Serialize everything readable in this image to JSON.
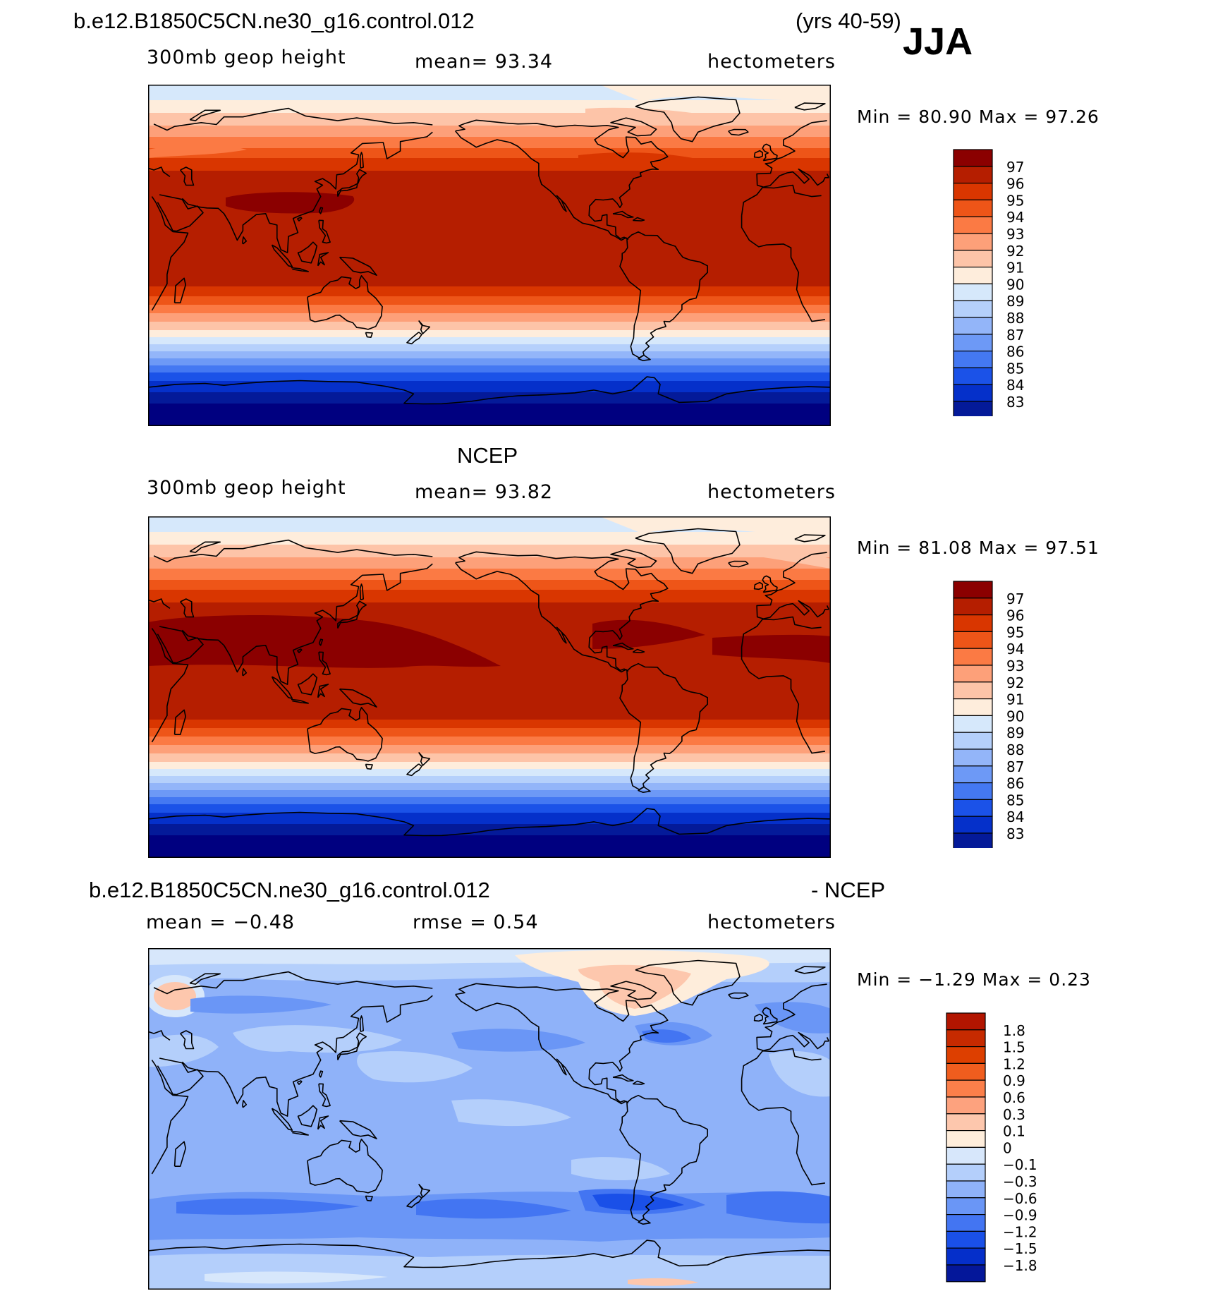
{
  "header": {
    "case_name": "b.e12.B1850C5CN.ne30_g16.control.012",
    "years": "(yrs 40-59)",
    "season": "JJA"
  },
  "panels": [
    {
      "id": "model",
      "title": "",
      "variable": "300mb geop height",
      "stat": "mean=   93.34",
      "units": "hectometers",
      "minmax": "Min =   80.90 Max =   97.26",
      "colorbar": {
        "labels": [
          "97",
          "96",
          "95",
          "94",
          "93",
          "92",
          "91",
          "90",
          "89",
          "88",
          "87",
          "86",
          "85",
          "84",
          "83"
        ],
        "colors": [
          "#8b0000",
          "#b51e00",
          "#d93600",
          "#ee5518",
          "#fb7a44",
          "#fda079",
          "#fdc4a8",
          "#feeddc",
          "#d6e8fb",
          "#b5d0fb",
          "#93b5f9",
          "#6d99f6",
          "#4478f2",
          "#1b52e8",
          "#0530ca",
          "#041a99",
          "#000080"
        ]
      }
    },
    {
      "id": "obs",
      "title": "NCEP",
      "variable": "300mb geop height",
      "stat": "mean=   93.82",
      "units": "hectometers",
      "minmax": "Min =   81.08 Max =   97.51",
      "colorbar": {
        "labels": [
          "97",
          "96",
          "95",
          "94",
          "93",
          "92",
          "91",
          "90",
          "89",
          "88",
          "87",
          "86",
          "85",
          "84",
          "83"
        ],
        "colors": [
          "#8b0000",
          "#b51e00",
          "#d93600",
          "#ee5518",
          "#fb7a44",
          "#fda079",
          "#fdc4a8",
          "#feeddc",
          "#d6e8fb",
          "#b5d0fb",
          "#93b5f9",
          "#6d99f6",
          "#4478f2",
          "#1b52e8",
          "#0530ca",
          "#041a99",
          "#000080"
        ]
      }
    },
    {
      "id": "diff",
      "title_left": "b.e12.B1850C5CN.ne30_g16.control.012",
      "title_right": "- NCEP",
      "variable": "mean =   −0.48",
      "stat": "rmse =    0.54",
      "units": "hectometers",
      "minmax": "Min =   −1.29 Max =    0.23",
      "colorbar": {
        "labels": [
          "1.8",
          "1.5",
          "1.2",
          "0.9",
          "0.6",
          "0.3",
          "0.1",
          "0",
          "−0.1",
          "−0.3",
          "−0.6",
          "−0.9",
          "−1.2",
          "−1.5",
          "−1.8"
        ],
        "colors": [
          "#b21500",
          "#c62a00",
          "#dd3f00",
          "#f05d1e",
          "#fb7f4a",
          "#fda27e",
          "#fdc7ad",
          "#feeddb",
          "#d7e7fb",
          "#b4cffb",
          "#8fb2f9",
          "#6a96f6",
          "#4375f2",
          "#1a50e8",
          "#052fca",
          "#04179a"
        ]
      }
    }
  ]
}
